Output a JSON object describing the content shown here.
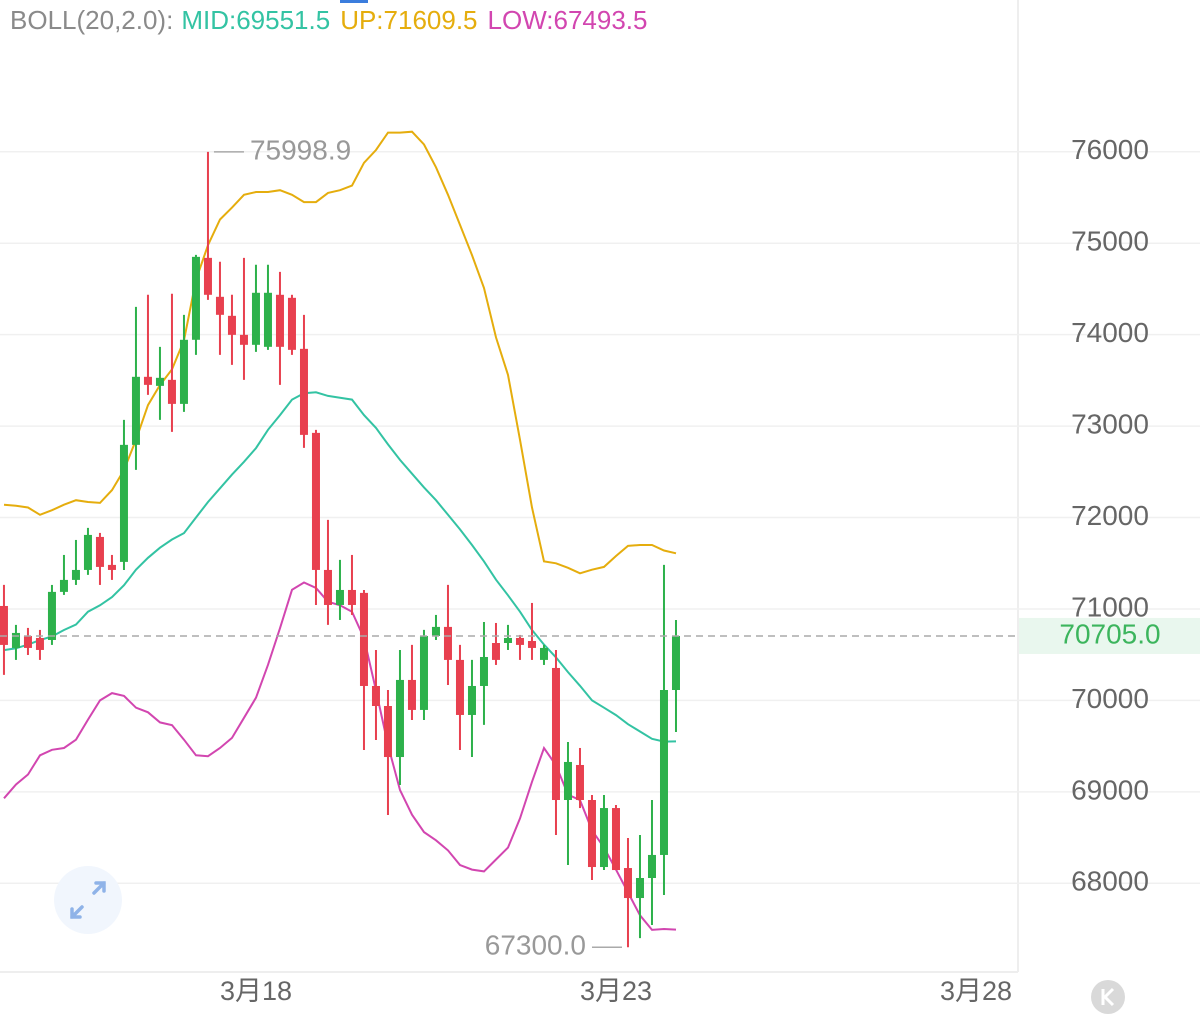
{
  "chart_data": {
    "type": "candlestick",
    "title": "BOLL(20,2.0):",
    "x": [
      0,
      1,
      2,
      3,
      4,
      5,
      6,
      7,
      8,
      9,
      10,
      11,
      12,
      13,
      14,
      15,
      16,
      17,
      18,
      19,
      20,
      21,
      22,
      23,
      24,
      25,
      26,
      27,
      28,
      29,
      30,
      31,
      32,
      33,
      34,
      35,
      36,
      37,
      38,
      39,
      40,
      41,
      42,
      43,
      44,
      45,
      46,
      47,
      48,
      49,
      50,
      51,
      52,
      53,
      54,
      55,
      56
    ],
    "open": [
      71033,
      70574,
      70705,
      70683,
      70661,
      71187,
      71318,
      71427,
      71788,
      71482,
      71515,
      72795,
      73539,
      73440,
      73506,
      73243,
      73944,
      74840,
      74414,
      74206,
      73998,
      73889,
      73867,
      74436,
      74403,
      73845,
      72926,
      71427,
      71044,
      71208,
      71176,
      70158,
      69939,
      69381,
      70224,
      69896,
      70705,
      70804,
      70443,
      69841,
      70158,
      70628,
      70628,
      70683,
      70650,
      70443,
      70355,
      68911,
      69294,
      68911,
      68178,
      68823,
      68167,
      67839,
      68058,
      68310,
      70114
    ],
    "high": [
      71263,
      70826,
      70793,
      70771,
      71263,
      71591,
      71755,
      71887,
      71832,
      71591,
      73068,
      74304,
      74436,
      73867,
      74447,
      74217,
      74873,
      75998.9,
      74797,
      74436,
      74840,
      74764,
      74764,
      74687,
      74436,
      74217,
      72959,
      71974,
      71537,
      71591,
      71208,
      70552,
      70114,
      70552,
      70607,
      70771,
      70935,
      71263,
      70607,
      70443,
      70858,
      70847,
      70826,
      70716,
      71066,
      70607,
      70552,
      69545,
      69480,
      68966,
      68966,
      68856,
      68496,
      68528,
      68911,
      71482,
      70880
    ],
    "low": [
      70279,
      70443,
      70497,
      70443,
      70607,
      71154,
      71263,
      71373,
      71263,
      71318,
      71427,
      72521,
      73342,
      73068,
      72937,
      73156,
      73779,
      74381,
      73779,
      73670,
      73506,
      73812,
      73834,
      73451,
      73779,
      72762,
      71044,
      70826,
      70880,
      70935,
      69458,
      69567,
      68747,
      69075,
      69786,
      69786,
      70661,
      70169,
      69458,
      69381,
      69732,
      70388,
      70552,
      70443,
      70443,
      70388,
      68528,
      68200,
      68823,
      68036,
      68145,
      68145,
      67300,
      67401,
      67544,
      67872,
      69655
    ],
    "close": [
      70607,
      70738,
      70574,
      70552,
      71187,
      71318,
      71427,
      71810,
      71460,
      71427,
      72795,
      73539,
      73451,
      73528,
      73243,
      73944,
      74851,
      74436,
      74217,
      73998,
      73889,
      74458,
      74458,
      73867,
      73834,
      72904,
      71427,
      71044,
      71208,
      71044,
      70158,
      69939,
      69381,
      70224,
      69896,
      70705,
      70804,
      70443,
      69841,
      70158,
      70475,
      70443,
      70683,
      70607,
      70574,
      70574,
      68911,
      69327,
      68911,
      68178,
      68823,
      68145,
      67839,
      68058,
      68310,
      70114,
      70705.0
    ],
    "up_color": "#2db14b",
    "down_color": "#e8404f",
    "series": [
      {
        "name": "MID:69551.5",
        "color": "#33c3a3",
        "values": [
          70550,
          70570,
          70610,
          70660,
          70700,
          70770,
          70830,
          70970,
          71040,
          71130,
          71260,
          71430,
          71560,
          71670,
          71760,
          71830,
          72000,
          72170,
          72320,
          72470,
          72610,
          72760,
          72960,
          73120,
          73290,
          73360,
          73370,
          73330,
          73310,
          73290,
          73120,
          72980,
          72800,
          72630,
          72480,
          72330,
          72190,
          72030,
          71870,
          71700,
          71520,
          71320,
          71150,
          70970,
          70770,
          70610,
          70470,
          70310,
          70160,
          70000,
          69920,
          69840,
          69740,
          69660,
          69580,
          69550,
          69551.5
        ]
      },
      {
        "name": "UP:71609.5",
        "color": "#e5ad0d",
        "values": [
          72140,
          72130,
          72110,
          72030,
          72080,
          72140,
          72190,
          72170,
          72160,
          72300,
          72520,
          72850,
          73230,
          73450,
          73620,
          73940,
          74600,
          74980,
          75260,
          75390,
          75530,
          75560,
          75560,
          75580,
          75530,
          75450,
          75450,
          75550,
          75580,
          75630,
          75880,
          76020,
          76210,
          76210,
          76220,
          76080,
          75830,
          75530,
          75200,
          74870,
          74510,
          73970,
          73560,
          72850,
          72110,
          71520,
          71500,
          71450,
          71390,
          71430,
          71460,
          71580,
          71690,
          71700,
          71700,
          71640,
          71609.5
        ]
      },
      {
        "name": "LOW:67493.5",
        "color": "#d246b0",
        "values": [
          68930,
          69080,
          69190,
          69400,
          69460,
          69480,
          69570,
          69790,
          70000,
          70080,
          70050,
          69920,
          69870,
          69760,
          69730,
          69570,
          69400,
          69390,
          69480,
          69590,
          69810,
          70030,
          70390,
          70790,
          71210,
          71290,
          71230,
          71080,
          71040,
          70970,
          70680,
          70110,
          69510,
          69020,
          68750,
          68560,
          68470,
          68360,
          68200,
          68150,
          68130,
          68260,
          68390,
          68710,
          69110,
          69480,
          69290,
          68970,
          68910,
          68580,
          68390,
          68150,
          67900,
          67650,
          67490,
          67500,
          67493.5
        ]
      }
    ],
    "xlim": [
      -0.33,
      84.5
    ],
    "xticks": [
      {
        "value": 21,
        "label": "3月18"
      },
      {
        "value": 51,
        "label": "3月23"
      },
      {
        "value": 81,
        "label": "3月28"
      }
    ],
    "ylim": [
      67030,
      77660
    ],
    "yticks": [
      68000,
      69000,
      70000,
      71000,
      72000,
      73000,
      74000,
      75000,
      76000
    ],
    "grid": true,
    "annotations": [
      {
        "text": "75998.9",
        "x": 17,
        "value": 75998.9
      },
      {
        "text": "67300.0",
        "x": 52,
        "value": 67300
      }
    ],
    "last_price": {
      "text": "70705.0",
      "value": 70705.0
    }
  }
}
